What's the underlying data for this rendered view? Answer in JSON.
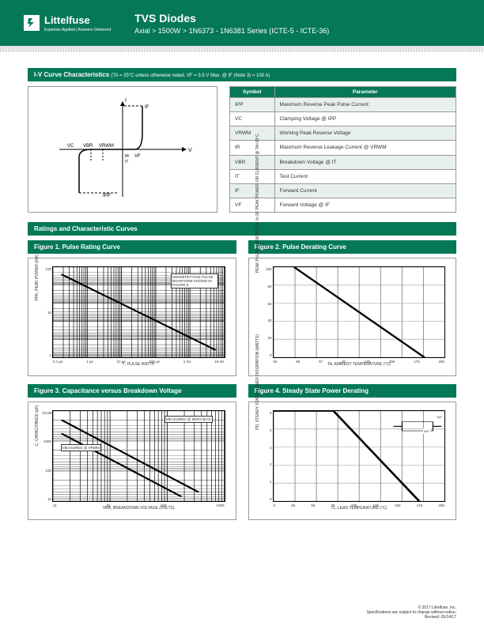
{
  "header": {
    "brand": "Littelfuse",
    "tagline": "Expertise Applied | Answers Delivered",
    "title": "TVS Diodes",
    "breadcrumb": "Axial  >  1500W  >  1N6373 - 1N6381 Series (ICTE-5 - ICTE-36)"
  },
  "section1": {
    "title": "I-V Curve Characteristics",
    "subtitle": "(TA = 25°C unless otherwise noted, VF = 3.5 V Max. @ IF (Note 3) = 100 A)"
  },
  "iv_curve": {
    "labels": [
      "I",
      "IF",
      "V",
      "VC",
      "VBR",
      "VRWM",
      "IR",
      "IT",
      "VF",
      "IPP"
    ],
    "line_color": "#000000",
    "dash": "4,2"
  },
  "param_table": {
    "headers": [
      "Symbol",
      "Parameter"
    ],
    "rows": [
      [
        "IPP",
        "Maximum Reverse Peak Pulse Current"
      ],
      [
        "VC",
        "Clamping Voltage @ IPP"
      ],
      [
        "VRWM",
        "Working Peak Reverse Voltage"
      ],
      [
        "IR",
        "Maximum Reverse Leakage Current @ VRWM"
      ],
      [
        "VBR",
        "Breakdown Voltage @ IT"
      ],
      [
        "IT",
        "Test Current"
      ],
      [
        "IF",
        "Forward Current"
      ],
      [
        "VF",
        "Forward Voltage @ IF"
      ]
    ]
  },
  "section2": {
    "title": "Ratings and Characteristic Curves"
  },
  "fig1": {
    "title": "Figure 1. Pulse Rating Curve",
    "type": "line",
    "ylabel": "PPK, PEAK POWER (kW)",
    "xlabel": "t , PULSE WIDTH",
    "xticks": [
      "0.1 µs",
      "1 µs",
      "10 µs",
      "100 µs",
      "1 ms",
      "10 ms"
    ],
    "yticks": [
      "100",
      "10",
      "1"
    ],
    "xscale": "log",
    "yscale": "log",
    "annotation": "NONREPETITIVE PULSE WAVEFORM SHOWN IN FIGURE 5",
    "line_color": "#000000",
    "grid_color": "#000000",
    "data_points": [
      [
        0,
        0.05
      ],
      [
        1,
        0.95
      ]
    ]
  },
  "fig2": {
    "title": "Figure 2. Pulse Derating Curve",
    "type": "line",
    "ylabel": "PEAK PULSE DERATING IN % OF PEAK POWER OR CURRENT @ TA=25°C",
    "xlabel": "TA, AMBIENT TEMPERATURE (°C)",
    "xticks": [
      "02",
      "55",
      "07",
      "10",
      "125",
      "150",
      "175",
      "200"
    ],
    "yticks": [
      "100",
      "80",
      "60",
      "40",
      "20",
      "0"
    ],
    "line_color": "#000000",
    "grid_color": "#999999",
    "data_points": [
      [
        0.12,
        0
      ],
      [
        0.88,
        1
      ]
    ]
  },
  "fig3": {
    "title": "Figure 3. Capacitance versus Breakdown Voltage",
    "type": "line",
    "ylabel": "C, CAPACITANCE (pF)",
    "xlabel": "VBR, BREAKDOWN VOLTAGE (VOLTS)",
    "xticks": [
      "11",
      "01",
      "100",
      "1000"
    ],
    "yticks": [
      "10,000",
      "1000",
      "100",
      "10"
    ],
    "xscale": "log",
    "yscale": "log",
    "annotations": [
      "MEASURED @ ZERO BIAS",
      "MEASURED @ VRWM"
    ],
    "line_color": "#000000",
    "grid_color": "#000000"
  },
  "fig4": {
    "title": "Figure 4. Steady State Power Derating",
    "type": "line",
    "ylabel": "PD, STEADY STATE POWER DISSIPATION (WATTS)",
    "xlabel": "TL, LEAD TEMPERATURE (°C)",
    "xticks": [
      "0",
      "25",
      "50",
      "75",
      "100",
      "125",
      "150",
      "175",
      "200"
    ],
    "yticks": [
      "5",
      "4",
      "3",
      "2",
      "1",
      "0"
    ],
    "line_color": "#000000",
    "grid_color": "#999999",
    "inset_labels": [
      "3/8\"",
      "3/8\""
    ]
  },
  "footer": {
    "copyright": "© 2017 Littelfuse, Inc.",
    "note": "Specifications are subject to change without notice.",
    "revised": "Revised: 05/14/17"
  },
  "colors": {
    "brand_green": "#047857",
    "row_tint": "#e8f0ec",
    "border": "#999999",
    "text": "#333333",
    "white": "#ffffff",
    "black": "#000000"
  }
}
